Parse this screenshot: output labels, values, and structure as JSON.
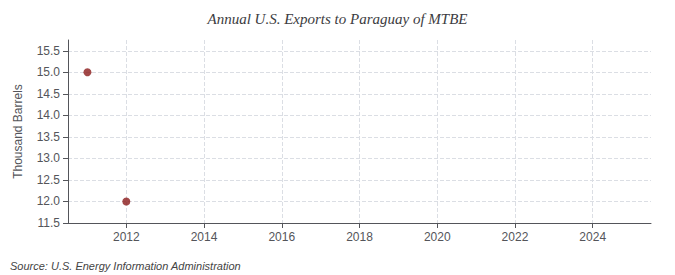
{
  "chart_data": {
    "type": "scatter",
    "title": "Annual U.S. Exports to Paraguay of MTBE",
    "ylabel": "Thousand Barrels",
    "annotations": [
      "Source: U.S. Energy Information Administration"
    ],
    "x": [
      2011,
      2012
    ],
    "values": [
      15.0,
      12.0
    ],
    "color": "#8b1a1a",
    "marker": "circle",
    "xlim": [
      2010.5,
      2025.5
    ],
    "xticks": [
      2012,
      2014,
      2016,
      2018,
      2020,
      2022,
      2024
    ],
    "ylim": [
      11.5,
      15.75
    ],
    "yticks": [
      11.5,
      {
        "value": 12,
        "label": "12.0"
      },
      12.5,
      {
        "value": 13,
        "label": "13.0"
      },
      13.5,
      {
        "value": 14,
        "label": "14.0"
      },
      14.5,
      {
        "value": 15,
        "label": "15.0"
      },
      15.5
    ],
    "grid": true
  }
}
